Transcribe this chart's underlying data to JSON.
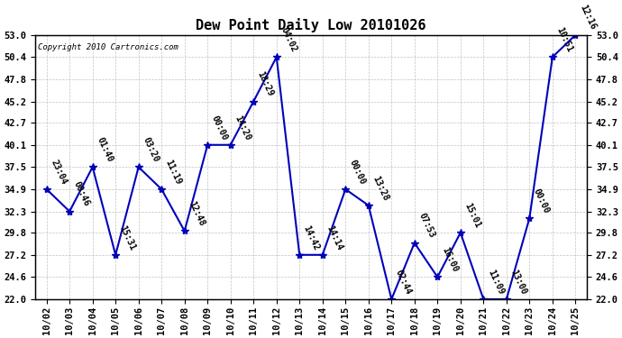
{
  "title": "Dew Point Daily Low 20101026",
  "copyright": "Copyright 2010 Cartronics.com",
  "x_labels": [
    "10/02",
    "10/03",
    "10/04",
    "10/05",
    "10/06",
    "10/07",
    "10/08",
    "10/09",
    "10/10",
    "10/11",
    "10/12",
    "10/13",
    "10/14",
    "10/15",
    "10/16",
    "10/17",
    "10/18",
    "10/19",
    "10/20",
    "10/21",
    "10/22",
    "10/23",
    "10/24",
    "10/25"
  ],
  "y_values": [
    34.9,
    32.3,
    37.5,
    27.2,
    37.5,
    34.9,
    30.0,
    40.1,
    40.1,
    45.2,
    50.4,
    27.2,
    27.2,
    34.9,
    33.0,
    22.0,
    28.6,
    24.6,
    29.8,
    22.0,
    22.0,
    31.5,
    50.4,
    53.0
  ],
  "time_labels": [
    "23:04",
    "00:46",
    "01:40",
    "15:31",
    "03:20",
    "11:19",
    "12:48",
    "00:00",
    "14:20",
    "18:29",
    "04:02",
    "14:42",
    "14:14",
    "00:00",
    "13:28",
    "02:44",
    "07:53",
    "16:00",
    "15:01",
    "11:09",
    "13:00",
    "00:00",
    "10:51",
    "12:16"
  ],
  "y_min": 22.0,
  "y_max": 53.0,
  "y_ticks": [
    22.0,
    24.6,
    27.2,
    29.8,
    32.3,
    34.9,
    37.5,
    40.1,
    42.7,
    45.2,
    47.8,
    50.4,
    53.0
  ],
  "line_color": "#0000bb",
  "marker_color": "#0000bb",
  "bg_color": "#ffffff",
  "grid_color": "#bbbbbb",
  "title_fontsize": 11,
  "label_fontsize": 7.5,
  "annot_fontsize": 7
}
